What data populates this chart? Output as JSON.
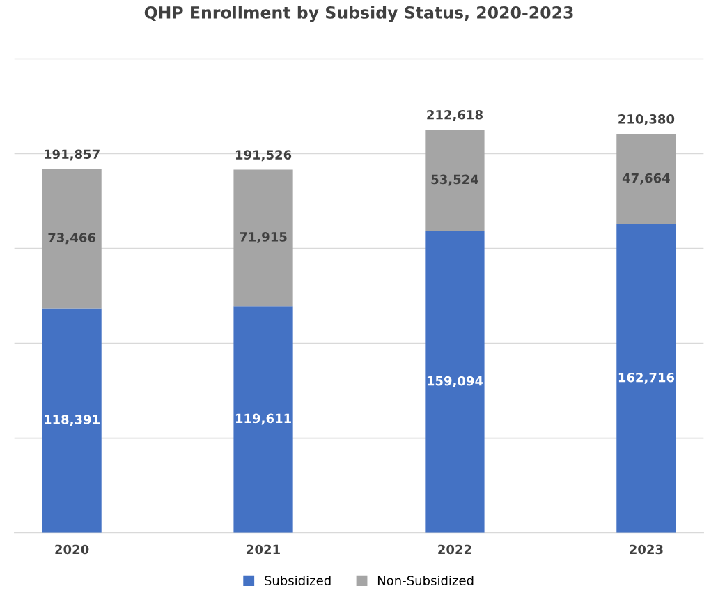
{
  "chart_data": {
    "type": "bar",
    "title": "QHP Enrollment by Subsidy Status, 2020-2023",
    "categories": [
      "2020",
      "2021",
      "2022",
      "2023"
    ],
    "stacked": true,
    "series": [
      {
        "name": "Subsidized",
        "color": "#4472c4",
        "values": [
          118391,
          119611,
          159094,
          162716
        ],
        "value_labels": [
          "118,391",
          "119,611",
          "159,094",
          "162,716"
        ]
      },
      {
        "name": "Non-Subsidized",
        "color": "#a5a5a5",
        "values": [
          73466,
          71915,
          53524,
          47664
        ],
        "value_labels": [
          "73,466",
          "71,915",
          "53,524",
          "47,664"
        ]
      }
    ],
    "totals": [
      "191,857",
      "191,526",
      "212,618",
      "210,380"
    ],
    "tick_labels": "x",
    "grid": "y",
    "legend": "bottom"
  }
}
